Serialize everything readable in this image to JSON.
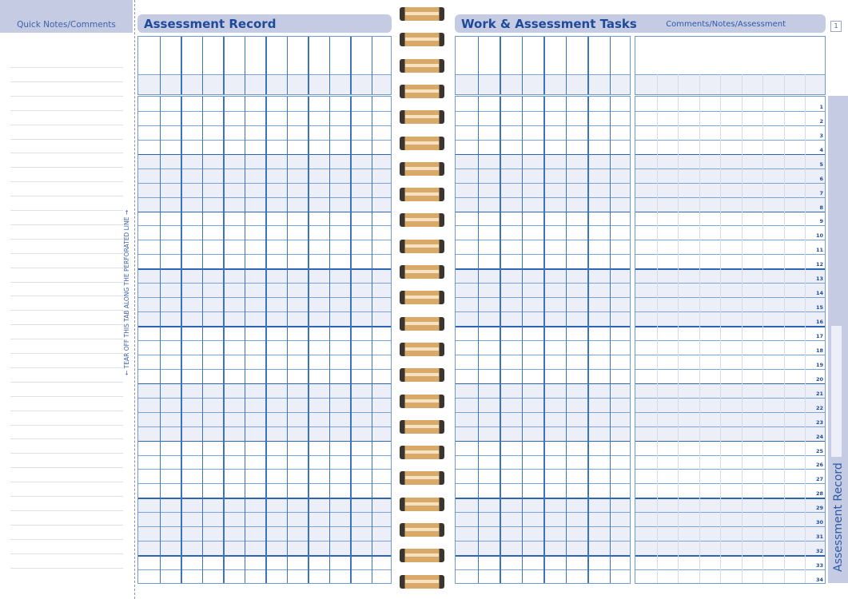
{
  "quick_notes": {
    "title": "Quick Notes/Comments",
    "line_count": 36
  },
  "tear_off_instruction": "← TEAR OFF THIS TAB ALONG THE PERFORATED LINE →",
  "left_page": {
    "title": "Assessment Record",
    "columns": 12,
    "rows": 34
  },
  "right_page": {
    "title": "Work & Assessment Tasks",
    "comments_title": "Comments/Notes/Assessment",
    "columns": 8,
    "comment_columns": 9,
    "row_numbers": [
      1,
      2,
      3,
      4,
      5,
      6,
      7,
      8,
      9,
      10,
      11,
      12,
      13,
      14,
      15,
      16,
      17,
      18,
      19,
      20,
      21,
      22,
      23,
      24,
      25,
      26,
      27,
      28,
      29,
      30,
      31,
      32,
      33,
      34
    ]
  },
  "page_number": "1",
  "side_tab": {
    "label": "Assessment Record"
  },
  "colors": {
    "accent": "#c5cbe3",
    "grid_line": "#3a74be",
    "title": "#1f4a9a",
    "shade": "#eceff8"
  }
}
